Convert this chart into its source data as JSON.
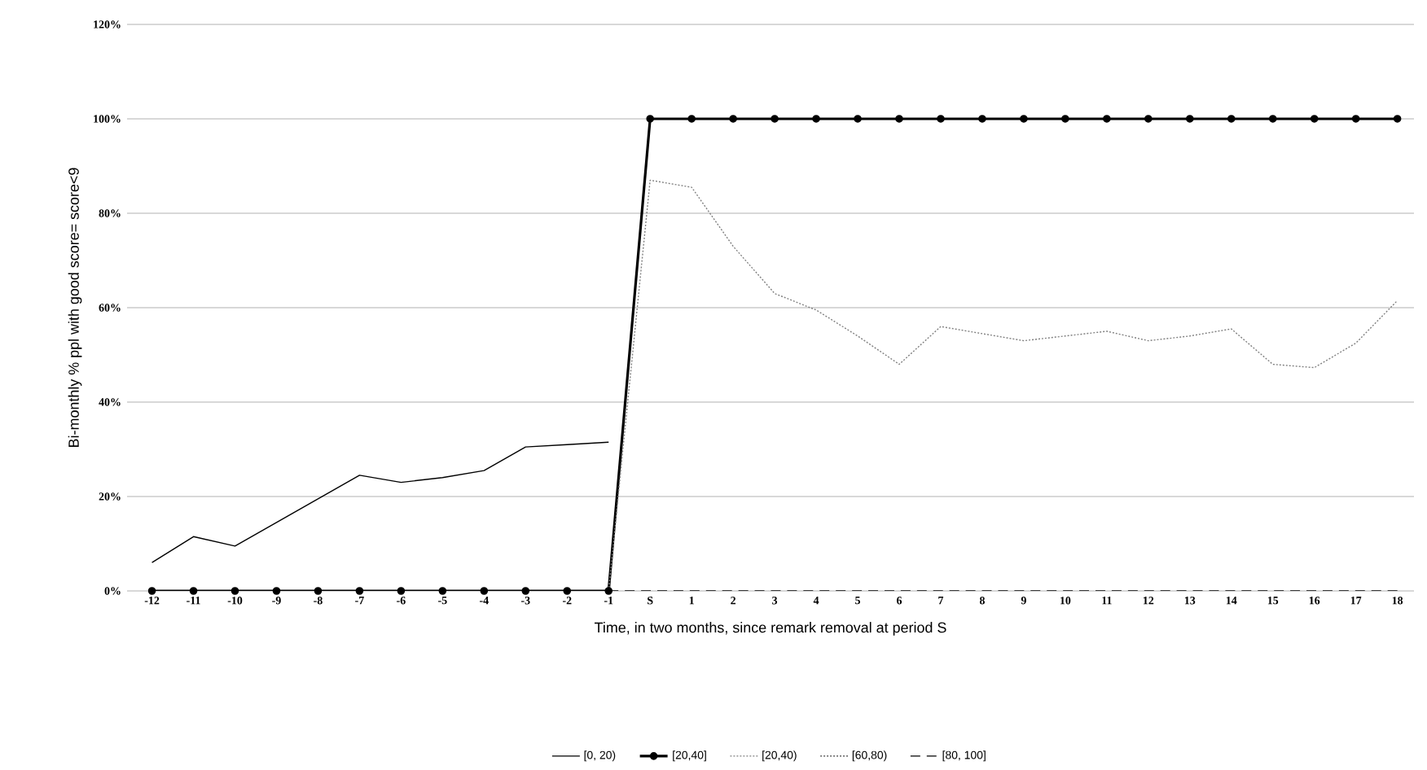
{
  "chart_data": {
    "type": "line",
    "xlabel": "Time, in two months, since remark removal at period  S",
    "ylabel": "Bi-monthly  % ppl with good score= score<9",
    "categories": [
      "-12",
      "-11",
      "-10",
      "-9",
      "-8",
      "-7",
      "-6",
      "-5",
      "-4",
      "-3",
      "-2",
      "-1",
      "S",
      "1",
      "2",
      "3",
      "4",
      "5",
      "6",
      "7",
      "8",
      "9",
      "10",
      "11",
      "12",
      "13",
      "14",
      "15",
      "16",
      "17",
      "18"
    ],
    "series": [
      {
        "name": "[0, 20)",
        "color": "#000000",
        "line_style": "solid",
        "marker": "none",
        "values": [
          6,
          11.5,
          9.5,
          14.5,
          19.5,
          24.5,
          23,
          24,
          25.5,
          30.5,
          31,
          31.5,
          null,
          null,
          null,
          null,
          null,
          null,
          null,
          null,
          null,
          null,
          null,
          null,
          null,
          null,
          null,
          null,
          null,
          null,
          null
        ]
      },
      {
        "name": "[20,40]",
        "color": "#000000",
        "line_style": "solid",
        "marker": "circle",
        "values": [
          0,
          0,
          0,
          0,
          0,
          0,
          0,
          0,
          0,
          0,
          0,
          0,
          100,
          100,
          100,
          100,
          100,
          100,
          100,
          100,
          100,
          100,
          100,
          100,
          100,
          100,
          100,
          100,
          100,
          100,
          100
        ]
      },
      {
        "name": "[20,40)",
        "color": "#808080",
        "line_style": "dotted",
        "marker": "none",
        "values": [
          null,
          null,
          null,
          null,
          null,
          null,
          null,
          null,
          null,
          null,
          null,
          0,
          87,
          85.5,
          73,
          63,
          59.5,
          54,
          48,
          56,
          54.5,
          53,
          54,
          55,
          53,
          54,
          55.5,
          48,
          47.3,
          52.5,
          61.5
        ]
      },
      {
        "name": "[60,80)",
        "color": "#404040",
        "line_style": "dotted",
        "marker": "none",
        "values": [
          null,
          null,
          null,
          null,
          null,
          null,
          null,
          null,
          null,
          null,
          null,
          null,
          null,
          null,
          null,
          null,
          null,
          null,
          null,
          null,
          null,
          null,
          null,
          null,
          null,
          null,
          null,
          null,
          null,
          null,
          null
        ]
      },
      {
        "name": "[80, 100]",
        "color": "#000000",
        "line_style": "dashed",
        "marker": "none",
        "values": [
          null,
          null,
          null,
          null,
          null,
          null,
          null,
          null,
          null,
          null,
          null,
          0,
          0,
          0,
          0,
          0,
          0,
          0,
          0,
          0,
          0,
          0,
          0,
          0,
          0,
          0,
          0,
          0,
          0,
          0,
          0
        ]
      }
    ],
    "ylim": [
      0,
      120
    ],
    "yticks": [
      {
        "value": 0,
        "label": "0%"
      },
      {
        "value": 20,
        "label": "20%"
      },
      {
        "value": 40,
        "label": "40%"
      },
      {
        "value": 60,
        "label": "60%"
      },
      {
        "value": 80,
        "label": "80%"
      },
      {
        "value": 100,
        "label": "100%"
      },
      {
        "value": 120,
        "label": "120%"
      }
    ],
    "grid": "y",
    "legend": "bottom"
  }
}
